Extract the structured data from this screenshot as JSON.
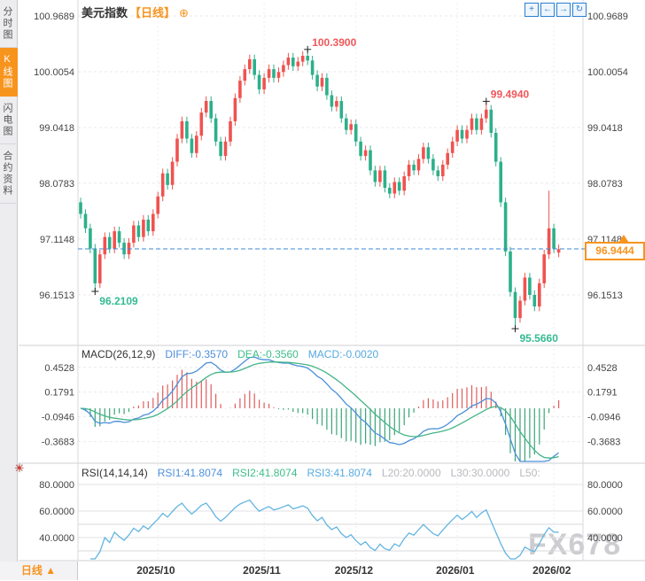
{
  "header": {
    "symbol": "美元指数",
    "period": "【日线】",
    "add_icon": "⊕"
  },
  "toolbar": {
    "icons": [
      {
        "name": "pan-crosshair-icon",
        "glyph": "+"
      },
      {
        "name": "shift-left-icon",
        "glyph": "←"
      },
      {
        "name": "shift-right-icon",
        "glyph": "→"
      },
      {
        "name": "jump-latest-icon",
        "glyph": "↻"
      }
    ]
  },
  "sidebar": {
    "tabs": [
      {
        "label": "分时图",
        "active": false
      },
      {
        "label": "K线图",
        "active": true
      },
      {
        "label": "闪电图",
        "active": false
      },
      {
        "label": "合约资料",
        "active": false
      }
    ]
  },
  "macd": {
    "title": "MACD(26,12,9)",
    "diff": "DIFF:-0.3570",
    "dea": "DEA:-0.3560",
    "macd": "MACD:-0.0020"
  },
  "rsi": {
    "title": "RSI(14,14,14)",
    "rsi1": "RSI1:41.8074",
    "rsi2": "RSI2:41.8074",
    "rsi3": "RSI3:41.8074",
    "l20": "L20:20.0000",
    "l30": "L30:30.0000",
    "l50": "L50:"
  },
  "bottom_bar": {
    "period": "日线",
    "arrow": "▲"
  },
  "main_chart": {
    "current_price": "96.9444"
  },
  "watermark": "FX678",
  "colors": {
    "up": "#ef5350",
    "down": "#2cb08a",
    "accent_orange": "#f7941e",
    "diff_line": "#4a8fdb",
    "dea_line": "#44b586",
    "hist_up": "#e05c5c",
    "hist_down": "#3aa578",
    "rsi_line": "#63b5e0",
    "current_line": "#3a8ad6",
    "annotation_high": "#f0575a",
    "annotation_low": "#33bb92"
  },
  "chart_data": {
    "type": "candlestick",
    "title": "美元指数 日线",
    "first_open": 97.75,
    "closes": [
      97.55,
      97.3,
      96.95,
      96.35,
      96.85,
      97.15,
      96.95,
      97.25,
      97.05,
      96.85,
      97.05,
      97.35,
      97.15,
      97.45,
      97.25,
      97.55,
      97.85,
      98.25,
      98.05,
      98.45,
      98.85,
      99.15,
      98.85,
      98.6,
      98.9,
      99.3,
      99.5,
      99.2,
      98.8,
      98.55,
      98.8,
      99.15,
      99.55,
      99.85,
      100.05,
      100.22,
      99.95,
      99.7,
      99.9,
      100.05,
      99.9,
      100.0,
      100.12,
      100.25,
      100.1,
      100.18,
      100.28,
      100.2,
      99.95,
      99.75,
      99.9,
      99.6,
      99.4,
      99.5,
      99.2,
      99.0,
      99.1,
      98.8,
      98.55,
      98.65,
      98.3,
      98.1,
      98.3,
      98.0,
      97.9,
      98.1,
      97.95,
      98.2,
      98.4,
      98.3,
      98.5,
      98.7,
      98.5,
      98.3,
      98.2,
      98.4,
      98.6,
      98.8,
      99.0,
      98.85,
      99.0,
      99.2,
      99.0,
      99.2,
      99.35,
      98.95,
      98.45,
      97.75,
      96.9,
      96.2,
      95.75,
      96.05,
      96.45,
      96.15,
      95.95,
      96.35,
      96.85,
      97.3,
      96.95,
      96.94
    ],
    "specials": {
      "3": {
        "low": 96.211
      },
      "47": {
        "high": 100.39
      },
      "84": {
        "high": 99.494
      },
      "90": {
        "low": 95.566
      },
      "97": {
        "high": 97.95
      },
      "99": {
        "open": 96.88
      }
    },
    "annotations": [
      {
        "index": 47,
        "price": 100.39,
        "label": "100.3900",
        "side": "high"
      },
      {
        "index": 84,
        "price": 99.494,
        "label": "99.4940",
        "side": "high"
      },
      {
        "index": 3,
        "price": 96.2109,
        "label": "96.2109",
        "side": "low"
      },
      {
        "index": 90,
        "price": 95.566,
        "label": "95.5660",
        "side": "low"
      }
    ],
    "current_price": 96.9444,
    "y_axis": [
      {
        "label": "100.9689",
        "price": 100.9689
      },
      {
        "label": "100.0054",
        "price": 100.0054
      },
      {
        "label": "99.0418",
        "price": 99.0418
      },
      {
        "label": "98.0783",
        "price": 98.0783
      },
      {
        "label": "97.1148",
        "price": 97.1148
      },
      {
        "label": "96.1513",
        "price": 96.1513
      }
    ],
    "macd_axis": [
      {
        "label": "0.4528",
        "v": 0.4528
      },
      {
        "label": "0.1791",
        "v": 0.1791
      },
      {
        "label": "-0.0946",
        "v": -0.0946
      },
      {
        "label": "-0.3683",
        "v": -0.3683
      }
    ],
    "rsi_axis": [
      {
        "label": "80.0000",
        "v": 80
      },
      {
        "label": "60.0000",
        "v": 60
      },
      {
        "label": "40.0000",
        "v": 40
      }
    ],
    "rsi_ref_lines": [
      50,
      30
    ],
    "x_ticks": [
      {
        "label": "2025/10",
        "i": 16
      },
      {
        "label": "2025/11",
        "i": 38
      },
      {
        "label": "2025/12",
        "i": 57
      },
      {
        "label": "2026/01",
        "i": 78
      },
      {
        "label": "2026/02",
        "i": 98
      }
    ],
    "indicators": {
      "macd": {
        "fast": 12,
        "slow": 26,
        "signal": 9,
        "diff": -0.357,
        "dea": -0.356,
        "macd": -0.002
      },
      "rsi": {
        "period": 14,
        "rsi1": 41.8074,
        "rsi2": 41.8074,
        "rsi3": 41.8074
      }
    }
  }
}
